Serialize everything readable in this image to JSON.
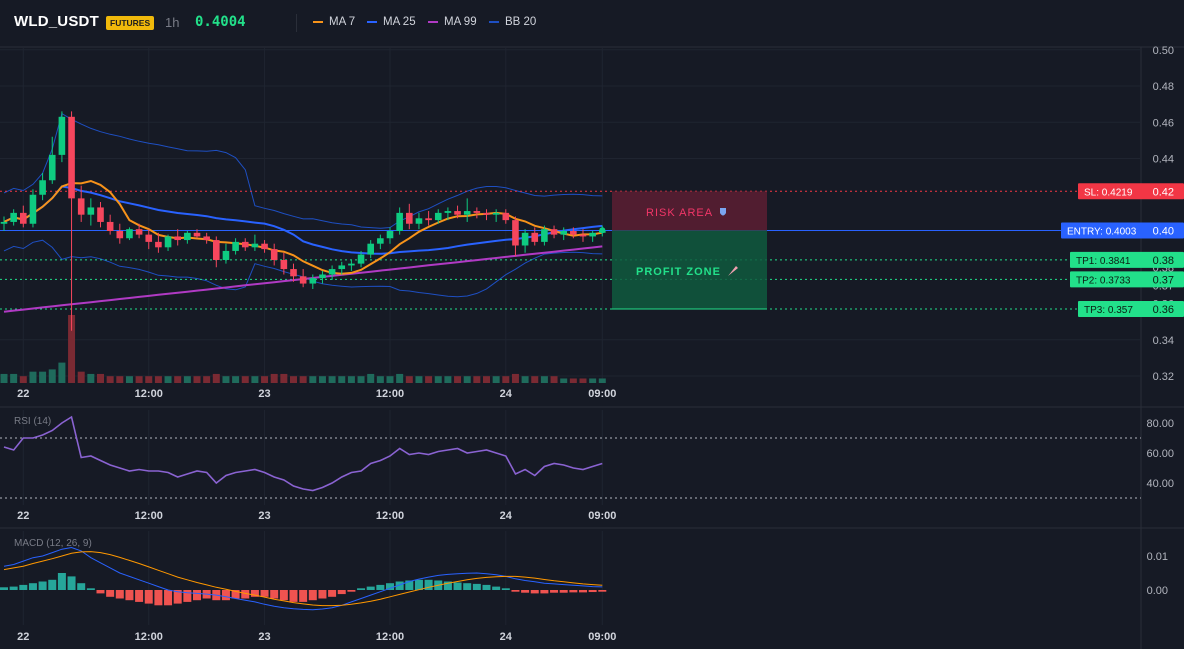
{
  "header": {
    "symbol": "WLD_USDT",
    "badge": "FUTURES",
    "interval": "1h",
    "price": "0.4004",
    "legend": [
      {
        "label": "MA 7",
        "color": "#f7931a"
      },
      {
        "label": "MA 25",
        "color": "#2962ff"
      },
      {
        "label": "MA 99",
        "color": "#b03ac4"
      },
      {
        "label": "BB 20",
        "color": "#1e4fc2"
      }
    ]
  },
  "chart_data": [
    {
      "type": "candlestick",
      "name": "price",
      "x_labels": [
        "22",
        "12:00",
        "23",
        "12:00",
        "24",
        "09:00"
      ],
      "y_ticks": [
        "0.50",
        "0.48",
        "0.46",
        "0.44",
        "0.42",
        "0.40",
        "0.38",
        "0.37",
        "0.36",
        "0.34",
        "0.32"
      ],
      "ylim": [
        0.32,
        0.5
      ],
      "levels": [
        {
          "label": "SL: 0.4219",
          "tick": "0.42",
          "value": 0.4219,
          "color": "#f23645",
          "style": "dotted"
        },
        {
          "label": "ENTRY: 0.4003",
          "tick": "0.40",
          "value": 0.4003,
          "color": "#2962ff",
          "style": "solid"
        },
        {
          "label": "TP1: 0.3841",
          "tick": "0.38",
          "value": 0.3841,
          "color": "#22e08a",
          "style": "dotted"
        },
        {
          "label": "TP2: 0.3733",
          "tick": "0.37",
          "value": 0.3733,
          "color": "#22e08a",
          "style": "dotted"
        },
        {
          "label": "TP3: 0.357",
          "tick": "0.36",
          "value": 0.357,
          "color": "#22e08a",
          "style": "dotted"
        }
      ],
      "zones": {
        "risk_label": "RISK AREA",
        "profit_label": "PROFIT ZONE"
      },
      "candles": [
        {
          "o": 0.404,
          "h": 0.408,
          "l": 0.4,
          "c": 0.405
        },
        {
          "o": 0.405,
          "h": 0.412,
          "l": 0.403,
          "c": 0.41
        },
        {
          "o": 0.41,
          "h": 0.414,
          "l": 0.402,
          "c": 0.404
        },
        {
          "o": 0.404,
          "h": 0.423,
          "l": 0.402,
          "c": 0.42
        },
        {
          "o": 0.42,
          "h": 0.432,
          "l": 0.417,
          "c": 0.428
        },
        {
          "o": 0.428,
          "h": 0.452,
          "l": 0.426,
          "c": 0.442
        },
        {
          "o": 0.442,
          "h": 0.466,
          "l": 0.438,
          "c": 0.463
        },
        {
          "o": 0.463,
          "h": 0.466,
          "l": 0.345,
          "c": 0.418
        },
        {
          "o": 0.418,
          "h": 0.425,
          "l": 0.405,
          "c": 0.409
        },
        {
          "o": 0.409,
          "h": 0.418,
          "l": 0.403,
          "c": 0.413
        },
        {
          "o": 0.413,
          "h": 0.416,
          "l": 0.402,
          "c": 0.405
        },
        {
          "o": 0.405,
          "h": 0.409,
          "l": 0.398,
          "c": 0.4
        },
        {
          "o": 0.4,
          "h": 0.404,
          "l": 0.393,
          "c": 0.396
        },
        {
          "o": 0.396,
          "h": 0.402,
          "l": 0.395,
          "c": 0.401
        },
        {
          "o": 0.401,
          "h": 0.404,
          "l": 0.396,
          "c": 0.398
        },
        {
          "o": 0.398,
          "h": 0.401,
          "l": 0.39,
          "c": 0.394
        },
        {
          "o": 0.394,
          "h": 0.399,
          "l": 0.388,
          "c": 0.391
        },
        {
          "o": 0.391,
          "h": 0.398,
          "l": 0.389,
          "c": 0.397
        },
        {
          "o": 0.397,
          "h": 0.401,
          "l": 0.392,
          "c": 0.395
        },
        {
          "o": 0.395,
          "h": 0.4,
          "l": 0.393,
          "c": 0.399
        },
        {
          "o": 0.399,
          "h": 0.401,
          "l": 0.396,
          "c": 0.397
        },
        {
          "o": 0.397,
          "h": 0.399,
          "l": 0.393,
          "c": 0.395
        },
        {
          "o": 0.395,
          "h": 0.397,
          "l": 0.38,
          "c": 0.384
        },
        {
          "o": 0.384,
          "h": 0.393,
          "l": 0.382,
          "c": 0.389
        },
        {
          "o": 0.389,
          "h": 0.396,
          "l": 0.387,
          "c": 0.394
        },
        {
          "o": 0.394,
          "h": 0.396,
          "l": 0.389,
          "c": 0.391
        },
        {
          "o": 0.391,
          "h": 0.398,
          "l": 0.389,
          "c": 0.393
        },
        {
          "o": 0.393,
          "h": 0.395,
          "l": 0.388,
          "c": 0.39
        },
        {
          "o": 0.39,
          "h": 0.393,
          "l": 0.381,
          "c": 0.384
        },
        {
          "o": 0.384,
          "h": 0.388,
          "l": 0.376,
          "c": 0.379
        },
        {
          "o": 0.379,
          "h": 0.382,
          "l": 0.372,
          "c": 0.375
        },
        {
          "o": 0.375,
          "h": 0.379,
          "l": 0.369,
          "c": 0.371
        },
        {
          "o": 0.371,
          "h": 0.376,
          "l": 0.368,
          "c": 0.374
        },
        {
          "o": 0.374,
          "h": 0.378,
          "l": 0.371,
          "c": 0.376
        },
        {
          "o": 0.376,
          "h": 0.381,
          "l": 0.373,
          "c": 0.379
        },
        {
          "o": 0.379,
          "h": 0.383,
          "l": 0.376,
          "c": 0.381
        },
        {
          "o": 0.381,
          "h": 0.384,
          "l": 0.378,
          "c": 0.382
        },
        {
          "o": 0.382,
          "h": 0.389,
          "l": 0.38,
          "c": 0.387
        },
        {
          "o": 0.387,
          "h": 0.395,
          "l": 0.385,
          "c": 0.393
        },
        {
          "o": 0.393,
          "h": 0.398,
          "l": 0.39,
          "c": 0.396
        },
        {
          "o": 0.396,
          "h": 0.402,
          "l": 0.393,
          "c": 0.4
        },
        {
          "o": 0.4,
          "h": 0.413,
          "l": 0.398,
          "c": 0.41
        },
        {
          "o": 0.41,
          "h": 0.415,
          "l": 0.401,
          "c": 0.404
        },
        {
          "o": 0.404,
          "h": 0.41,
          "l": 0.401,
          "c": 0.407
        },
        {
          "o": 0.407,
          "h": 0.411,
          "l": 0.403,
          "c": 0.406
        },
        {
          "o": 0.406,
          "h": 0.412,
          "l": 0.404,
          "c": 0.41
        },
        {
          "o": 0.41,
          "h": 0.413,
          "l": 0.406,
          "c": 0.411
        },
        {
          "o": 0.411,
          "h": 0.414,
          "l": 0.407,
          "c": 0.409
        },
        {
          "o": 0.409,
          "h": 0.418,
          "l": 0.405,
          "c": 0.411
        },
        {
          "o": 0.411,
          "h": 0.413,
          "l": 0.407,
          "c": 0.41
        },
        {
          "o": 0.41,
          "h": 0.412,
          "l": 0.406,
          "c": 0.409
        },
        {
          "o": 0.409,
          "h": 0.412,
          "l": 0.405,
          "c": 0.41
        },
        {
          "o": 0.41,
          "h": 0.412,
          "l": 0.404,
          "c": 0.406
        },
        {
          "o": 0.406,
          "h": 0.408,
          "l": 0.386,
          "c": 0.392
        },
        {
          "o": 0.392,
          "h": 0.401,
          "l": 0.388,
          "c": 0.399
        },
        {
          "o": 0.399,
          "h": 0.402,
          "l": 0.392,
          "c": 0.394
        },
        {
          "o": 0.394,
          "h": 0.403,
          "l": 0.392,
          "c": 0.401
        },
        {
          "o": 0.401,
          "h": 0.403,
          "l": 0.396,
          "c": 0.398
        },
        {
          "o": 0.398,
          "h": 0.402,
          "l": 0.395,
          "c": 0.4
        },
        {
          "o": 0.4,
          "h": 0.402,
          "l": 0.396,
          "c": 0.398
        },
        {
          "o": 0.398,
          "h": 0.401,
          "l": 0.394,
          "c": 0.397
        },
        {
          "o": 0.397,
          "h": 0.4,
          "l": 0.394,
          "c": 0.399
        },
        {
          "o": 0.399,
          "h": 0.403,
          "l": 0.397,
          "c": 0.4004
        }
      ],
      "volume": [
        4,
        4,
        3,
        5,
        5,
        6,
        9,
        30,
        5,
        4,
        4,
        3,
        3,
        3,
        3,
        3,
        3,
        3,
        3,
        3,
        3,
        3,
        4,
        3,
        3,
        3,
        3,
        3,
        4,
        4,
        3,
        3,
        3,
        3,
        3,
        3,
        3,
        3,
        4,
        3,
        3,
        4,
        3,
        3,
        3,
        3,
        3,
        3,
        3,
        3,
        3,
        3,
        3,
        4,
        3,
        3,
        3,
        3,
        2,
        2,
        2,
        2,
        2
      ]
    },
    {
      "type": "line",
      "name": "RSI (14)",
      "y_ticks": [
        "80.00",
        "60.00",
        "40.00"
      ],
      "ylim": [
        30,
        90
      ],
      "bands": [
        70,
        30
      ],
      "values": [
        64,
        62,
        70,
        70,
        72,
        75,
        80,
        84,
        57,
        58,
        55,
        52,
        50,
        48,
        49,
        48,
        48,
        47,
        44,
        46,
        48,
        47,
        40,
        45,
        47,
        48,
        49,
        47,
        44,
        42,
        38,
        36,
        35,
        37,
        40,
        44,
        47,
        48,
        53,
        55,
        58,
        63,
        59,
        60,
        59,
        61,
        62,
        63,
        60,
        61,
        62,
        60,
        58,
        46,
        49,
        45,
        51,
        53,
        52,
        50,
        49,
        51,
        53
      ]
    },
    {
      "type": "bar",
      "name": "MACD (12, 26, 9)",
      "y_ticks": [
        "0.01",
        "0.00"
      ],
      "ylim": [
        -0.007,
        0.015
      ],
      "histogram": [
        0.0008,
        0.001,
        0.0015,
        0.002,
        0.0025,
        0.003,
        0.005,
        0.004,
        0.002,
        0.0005,
        -0.001,
        -0.002,
        -0.0025,
        -0.003,
        -0.0035,
        -0.004,
        -0.0045,
        -0.0045,
        -0.004,
        -0.0035,
        -0.003,
        -0.0025,
        -0.003,
        -0.003,
        -0.0025,
        -0.0025,
        -0.002,
        -0.002,
        -0.0025,
        -0.003,
        -0.0035,
        -0.0035,
        -0.003,
        -0.0025,
        -0.002,
        -0.0012,
        -0.0005,
        0.0005,
        0.001,
        0.0015,
        0.002,
        0.0025,
        0.0028,
        0.003,
        0.003,
        0.0028,
        0.0025,
        0.0022,
        0.002,
        0.0018,
        0.0015,
        0.001,
        0.0005,
        -0.0005,
        -0.0008,
        -0.001,
        -0.001,
        -0.0008,
        -0.0008,
        -0.0007,
        -0.0007,
        -0.0006,
        -0.0005
      ],
      "macd": [
        0.007,
        0.0075,
        0.0085,
        0.0095,
        0.01,
        0.011,
        0.012,
        0.0125,
        0.0115,
        0.0095,
        0.008,
        0.0065,
        0.005,
        0.004,
        0.003,
        0.002,
        0.001,
        0.0,
        -0.0005,
        -0.0008,
        -0.001,
        -0.0012,
        -0.0015,
        -0.002,
        -0.0025,
        -0.003,
        -0.0035,
        -0.0042,
        -0.0048,
        -0.0052,
        -0.0055,
        -0.0057,
        -0.0058,
        -0.0056,
        -0.0052,
        -0.0045,
        -0.0035,
        -0.0025,
        -0.0015,
        -0.0005,
        0.0005,
        0.0015,
        0.0025,
        0.0032,
        0.0038,
        0.0043,
        0.0046,
        0.0048,
        0.0049,
        0.005,
        0.0048,
        0.0045,
        0.004,
        0.0033,
        0.0028,
        0.0024,
        0.002,
        0.0018,
        0.0016,
        0.0014,
        0.0012,
        0.001,
        0.0009
      ],
      "signal": [
        0.006,
        0.0065,
        0.007,
        0.0078,
        0.0085,
        0.0092,
        0.01,
        0.0108,
        0.0112,
        0.0113,
        0.011,
        0.0104,
        0.0096,
        0.0087,
        0.0078,
        0.0068,
        0.0058,
        0.0048,
        0.0038,
        0.003,
        0.0022,
        0.0015,
        0.0008,
        0.0002,
        -0.0004,
        -0.001,
        -0.0015,
        -0.0021,
        -0.0027,
        -0.0032,
        -0.0037,
        -0.0041,
        -0.0044,
        -0.0046,
        -0.0046,
        -0.0045,
        -0.0042,
        -0.0038,
        -0.0033,
        -0.0027,
        -0.002,
        -0.0013,
        -0.0006,
        0.0001,
        0.0008,
        0.0014,
        0.002,
        0.0025,
        0.003,
        0.0034,
        0.0037,
        0.0039,
        0.004,
        0.004,
        0.0038,
        0.0035,
        0.0031,
        0.0027,
        0.0024,
        0.0021,
        0.0018,
        0.0016,
        0.0014
      ]
    }
  ]
}
